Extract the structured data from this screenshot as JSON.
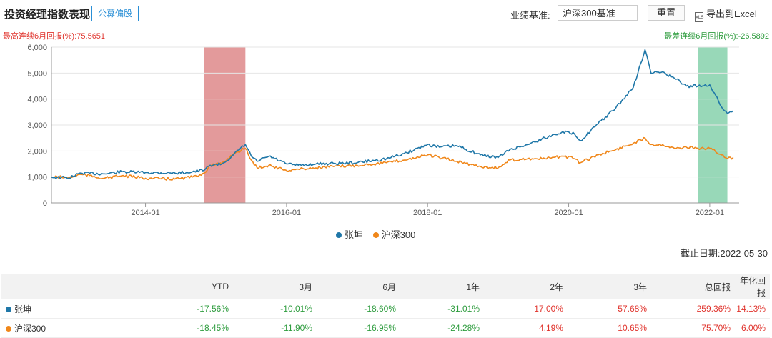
{
  "header": {
    "title": "投资经理指数表现",
    "badge": "公募偏股",
    "benchmark_label": "业绩基准:",
    "benchmark_value": "沪深300基准",
    "reset_label": "重置",
    "export_label": "导出到Excel",
    "export_icon": "excel-icon"
  },
  "stats": {
    "max_label": "最高连续6月回报(%):",
    "max_value": "75.5651",
    "min_label": "最差连续6月回报(%):",
    "min_value": "-26.5892"
  },
  "cutoff": {
    "label": "截止日期:",
    "date": "2022-05-30"
  },
  "colors": {
    "manager": "#1f77a8",
    "index": "#f0871a",
    "high_band": "#d9787a",
    "low_band": "#6cc79a"
  },
  "chart_data": {
    "type": "line",
    "ylim": [
      0,
      6000
    ],
    "yticks": [
      "0",
      "1,000",
      "2,000",
      "3,000",
      "4,000",
      "5,000",
      "6,000"
    ],
    "xticks": [
      "2014-01",
      "2016-01",
      "2018-01",
      "2020-01",
      "2022-01"
    ],
    "highlights": [
      {
        "kind": "best_6m",
        "start": "2014-11",
        "end": "2015-06"
      },
      {
        "kind": "worst_6m",
        "start": "2021-11",
        "end": "2022-04"
      }
    ],
    "series": [
      {
        "name": "张坤",
        "points": [
          [
            "2012-09",
            1000
          ],
          [
            "2012-12",
            960
          ],
          [
            "2013-02",
            1150
          ],
          [
            "2013-06",
            1120
          ],
          [
            "2013-09",
            1200
          ],
          [
            "2014-01",
            1170
          ],
          [
            "2014-06",
            1150
          ],
          [
            "2014-09",
            1200
          ],
          [
            "2014-11",
            1260
          ],
          [
            "2014-12",
            1450
          ],
          [
            "2015-02",
            1500
          ],
          [
            "2015-04",
            1850
          ],
          [
            "2015-06",
            2250
          ],
          [
            "2015-07",
            1800
          ],
          [
            "2015-08",
            1600
          ],
          [
            "2015-10",
            1800
          ],
          [
            "2016-01",
            1500
          ],
          [
            "2016-03",
            1450
          ],
          [
            "2016-06",
            1500
          ],
          [
            "2016-09",
            1520
          ],
          [
            "2017-01",
            1550
          ],
          [
            "2017-06",
            1700
          ],
          [
            "2017-09",
            1900
          ],
          [
            "2018-01",
            2250
          ],
          [
            "2018-03",
            2150
          ],
          [
            "2018-06",
            2200
          ],
          [
            "2018-10",
            1850
          ],
          [
            "2019-01",
            1750
          ],
          [
            "2019-03",
            2050
          ],
          [
            "2019-06",
            2250
          ],
          [
            "2019-09",
            2500
          ],
          [
            "2019-12",
            2750
          ],
          [
            "2020-02",
            2650
          ],
          [
            "2020-03",
            2400
          ],
          [
            "2020-06",
            3050
          ],
          [
            "2020-09",
            3650
          ],
          [
            "2020-12",
            4450
          ],
          [
            "2021-02",
            5900
          ],
          [
            "2021-03",
            5000
          ],
          [
            "2021-05",
            5050
          ],
          [
            "2021-07",
            4800
          ],
          [
            "2021-09",
            4500
          ],
          [
            "2021-11",
            4500
          ],
          [
            "2022-01",
            4550
          ],
          [
            "2022-03",
            3700
          ],
          [
            "2022-04",
            3450
          ],
          [
            "2022-05",
            3550
          ]
        ]
      },
      {
        "name": "沪深300",
        "points": [
          [
            "2012-09",
            1000
          ],
          [
            "2012-12",
            980
          ],
          [
            "2013-02",
            1100
          ],
          [
            "2013-06",
            950
          ],
          [
            "2013-09",
            1050
          ],
          [
            "2014-01",
            950
          ],
          [
            "2014-06",
            920
          ],
          [
            "2014-09",
            1000
          ],
          [
            "2014-11",
            1150
          ],
          [
            "2014-12",
            1450
          ],
          [
            "2015-02",
            1500
          ],
          [
            "2015-04",
            1900
          ],
          [
            "2015-06",
            2100
          ],
          [
            "2015-07",
            1650
          ],
          [
            "2015-08",
            1350
          ],
          [
            "2015-10",
            1450
          ],
          [
            "2016-01",
            1250
          ],
          [
            "2016-03",
            1300
          ],
          [
            "2016-06",
            1350
          ],
          [
            "2016-09",
            1400
          ],
          [
            "2017-01",
            1450
          ],
          [
            "2017-06",
            1550
          ],
          [
            "2017-09",
            1650
          ],
          [
            "2018-01",
            1850
          ],
          [
            "2018-03",
            1750
          ],
          [
            "2018-06",
            1600
          ],
          [
            "2018-10",
            1400
          ],
          [
            "2019-01",
            1350
          ],
          [
            "2019-03",
            1650
          ],
          [
            "2019-06",
            1700
          ],
          [
            "2019-09",
            1700
          ],
          [
            "2019-12",
            1800
          ],
          [
            "2020-02",
            1700
          ],
          [
            "2020-03",
            1550
          ],
          [
            "2020-06",
            1850
          ],
          [
            "2020-09",
            2050
          ],
          [
            "2020-12",
            2300
          ],
          [
            "2021-02",
            2500
          ],
          [
            "2021-03",
            2250
          ],
          [
            "2021-05",
            2250
          ],
          [
            "2021-07",
            2100
          ],
          [
            "2021-09",
            2150
          ],
          [
            "2021-11",
            2100
          ],
          [
            "2022-01",
            2100
          ],
          [
            "2022-03",
            1850
          ],
          [
            "2022-04",
            1700
          ],
          [
            "2022-05",
            1750
          ]
        ]
      }
    ]
  },
  "table": {
    "headers": [
      "",
      "YTD",
      "3月",
      "6月",
      "1年",
      "2年",
      "3年",
      "总回报",
      "年化回报"
    ],
    "rows": [
      {
        "name": "张坤",
        "values": [
          "-17.56%",
          "-10.01%",
          "-18.60%",
          "-31.01%",
          "17.00%",
          "57.68%",
          "259.36%",
          "14.13%"
        ]
      },
      {
        "name": "沪深300",
        "values": [
          "-18.45%",
          "-11.90%",
          "-16.95%",
          "-24.28%",
          "4.19%",
          "10.65%",
          "75.70%",
          "6.00%"
        ]
      }
    ]
  }
}
